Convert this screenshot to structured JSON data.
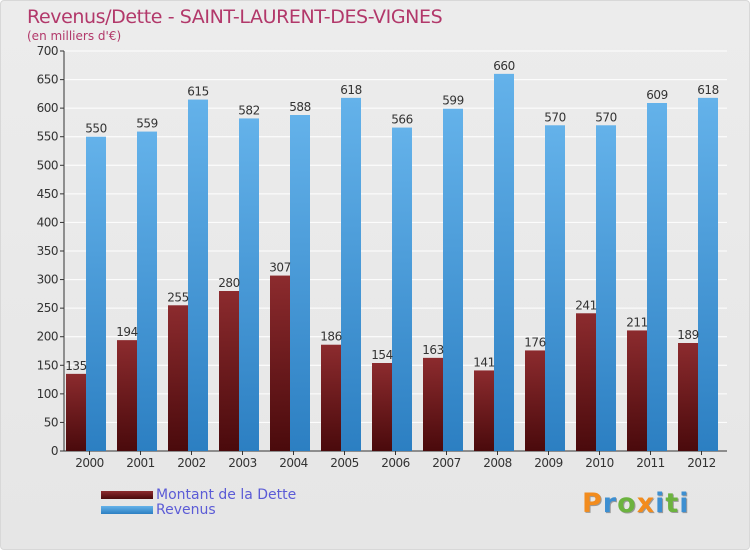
{
  "header": {
    "title": "Revenus/Dette - SAINT-LAURENT-DES-VIGNES",
    "subtitle": "(en milliers d'€)"
  },
  "logo": {
    "text": "Proxiti",
    "letters": [
      {
        "ch": "P",
        "color": "#f28c1e"
      },
      {
        "ch": "r",
        "color": "#3d8fd1"
      },
      {
        "ch": "o",
        "color": "#6cb33f"
      },
      {
        "ch": "x",
        "color": "#f28c1e"
      },
      {
        "ch": "i",
        "color": "#3d8fd1"
      },
      {
        "ch": "t",
        "color": "#6cb33f"
      },
      {
        "ch": "i",
        "color": "#3d8fd1"
      }
    ]
  },
  "colors": {
    "dette_top": "#8c2b2e",
    "dette_bottom": "#4a0a0c",
    "revenus_top": "#64b2ea",
    "revenus_bottom": "#2c7fc2",
    "title": "#b2386a",
    "legend_text": "#5b5bd6"
  },
  "chart_data": {
    "type": "bar",
    "categories": [
      "2000",
      "2001",
      "2002",
      "2003",
      "2004",
      "2005",
      "2006",
      "2007",
      "2008",
      "2009",
      "2010",
      "2011",
      "2012"
    ],
    "series": [
      {
        "name": "Montant de la Dette",
        "values": [
          135,
          194,
          255,
          280,
          307,
          186,
          154,
          163,
          141,
          176,
          241,
          211,
          189
        ]
      },
      {
        "name": "Revenus",
        "values": [
          550,
          559,
          615,
          582,
          588,
          618,
          566,
          599,
          660,
          570,
          570,
          609,
          618
        ]
      }
    ],
    "ylim": [
      0,
      700
    ],
    "yticks": [
      0,
      50,
      100,
      150,
      200,
      250,
      300,
      350,
      400,
      450,
      500,
      550,
      600,
      650,
      700
    ],
    "grid": true,
    "legend": "bottom-left"
  }
}
